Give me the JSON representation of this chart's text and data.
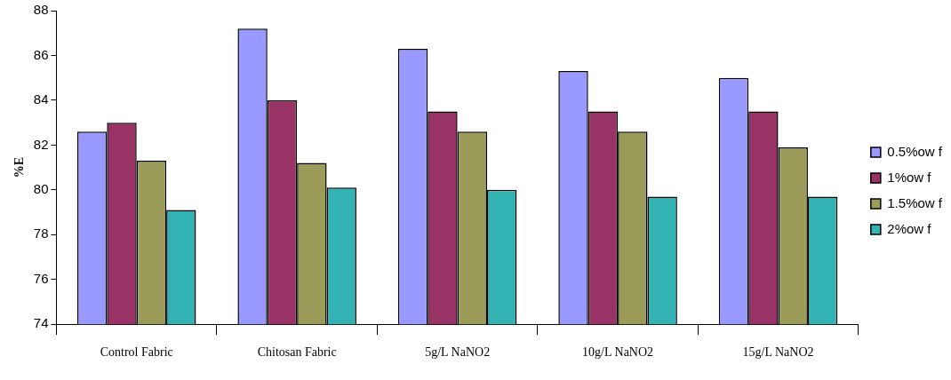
{
  "chart_data": {
    "type": "bar",
    "ylabel": "%E",
    "categories": [
      "Control Fabric",
      "Chitosan Fabric",
      "5g/L NaNO2",
      "10g/L NaNO2",
      "15g/L NaNO2"
    ],
    "series": [
      {
        "name": "0.5%ow f",
        "color": "#9999ff",
        "values": [
          82.6,
          87.2,
          86.3,
          85.3,
          85.0
        ]
      },
      {
        "name": "1%ow f",
        "color": "#993366",
        "values": [
          83.0,
          84.0,
          83.5,
          83.5,
          83.5
        ]
      },
      {
        "name": "1.5%ow f",
        "color": "#9c9c5a",
        "values": [
          81.3,
          81.2,
          82.6,
          82.6,
          81.9
        ]
      },
      {
        "name": "2%ow f",
        "color": "#33b3b3",
        "values": [
          79.1,
          80.1,
          80.0,
          79.7,
          79.7
        ]
      }
    ],
    "ylim": [
      74,
      88
    ],
    "yticks": [
      74,
      76,
      78,
      80,
      82,
      84,
      86,
      88
    ],
    "grid": false,
    "legend": "right"
  }
}
